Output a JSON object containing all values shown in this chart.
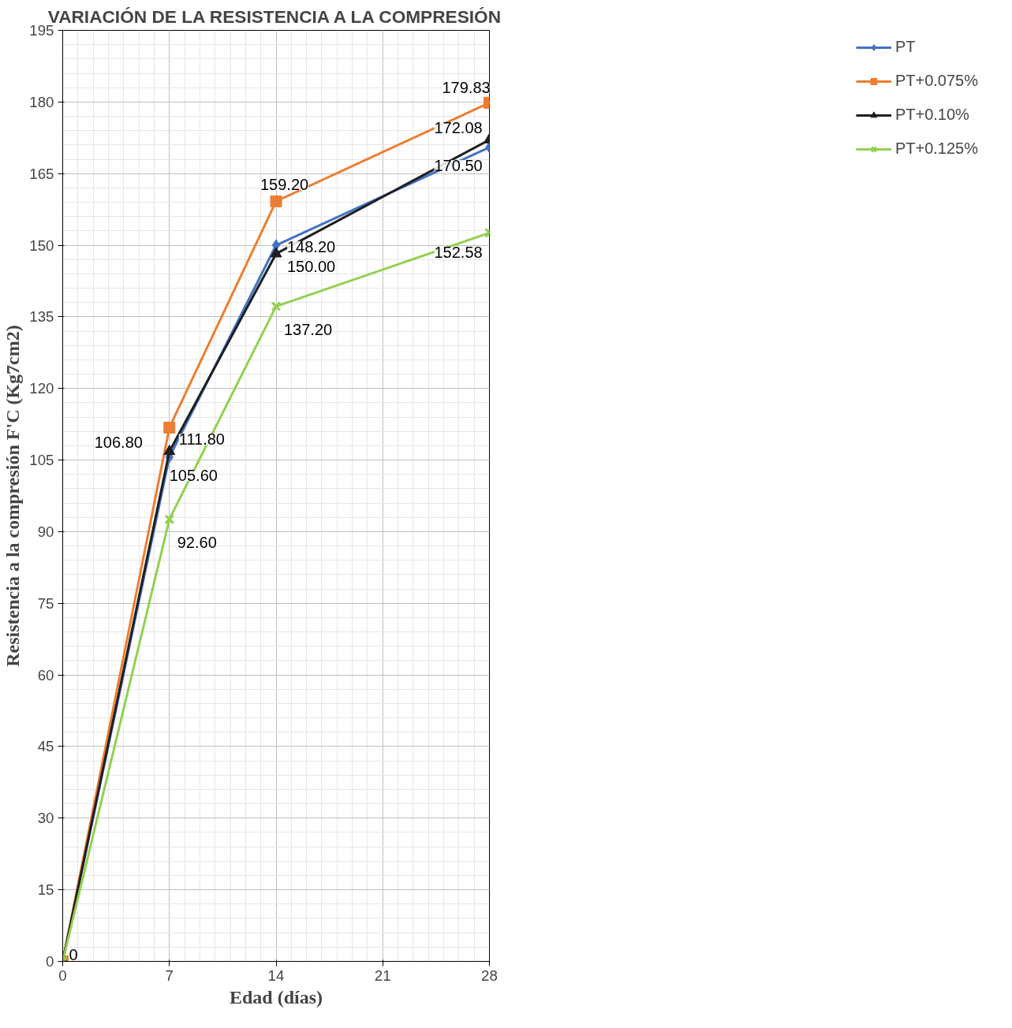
{
  "chart_data": {
    "type": "line",
    "title": "VARIACIÓN DE LA RESISTENCIA A LA COMPRESIÓN",
    "xlabel": "Edad (días)",
    "ylabel": "Resistencia a la compresión F'C (Kg7cm2)",
    "x": [
      0,
      7,
      14,
      28
    ],
    "series": [
      {
        "name": "PT",
        "color": "#4472c4",
        "marker": "diamond",
        "values": [
          0,
          105.6,
          150.0,
          170.5
        ],
        "value_labels": [
          "0",
          "105.60",
          "150.00",
          "170.50"
        ]
      },
      {
        "name": "PT+0.075%",
        "color": "#ed7d31",
        "marker": "square",
        "values": [
          0,
          111.8,
          159.2,
          179.83
        ],
        "value_labels": [
          null,
          "111.80",
          "159.20",
          "179.83"
        ]
      },
      {
        "name": "PT+0.10%",
        "color": "#1f1f1f",
        "marker": "triangle",
        "values": [
          0,
          106.8,
          148.2,
          172.08
        ],
        "value_labels": [
          null,
          "106.80",
          "148.20",
          "172.08"
        ]
      },
      {
        "name": "PT+0.125%",
        "color": "#92d050",
        "marker": "cross",
        "values": [
          0,
          92.6,
          137.2,
          152.58
        ],
        "value_labels": [
          null,
          "92.60",
          "137.20",
          "152.58"
        ]
      }
    ],
    "xlim": [
      0,
      28
    ],
    "xticks": [
      0,
      7,
      14,
      21,
      28
    ],
    "ylim": [
      0,
      195
    ],
    "yticks": [
      0,
      15,
      30,
      45,
      60,
      75,
      90,
      105,
      120,
      135,
      150,
      165,
      180,
      195
    ],
    "grid": true,
    "legend": "right",
    "line_style": "solid"
  }
}
